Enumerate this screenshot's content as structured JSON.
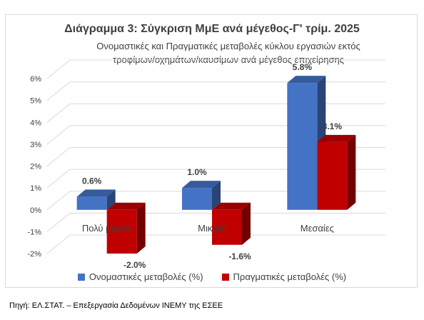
{
  "chart_data": {
    "type": "bar",
    "title": "Διάγραμμα 3: Σύγκριση ΜμΕ ανά μέγεθος-Γ' τρίμ. 2025",
    "subtitle_lines": [
      "Ονομαστικές και Πραγματικές μεταβολές κύκλου εργασιών εκτός",
      "τροφίμων/οχημάτων/καυσίμων ανά μέγεθος επιχείρησης"
    ],
    "categories": [
      "Πολύ μικρές",
      "Μικρές",
      "Μεσαίες"
    ],
    "series": [
      {
        "name": "Ονομαστικές μεταβολές (%)",
        "values": [
          0.6,
          1.0,
          5.8
        ],
        "labels": [
          "0.6%",
          "1.0%",
          "5.8%"
        ],
        "color": "#4472c4"
      },
      {
        "name": "Πραγματικές μεταβολές (%)",
        "values": [
          -2.0,
          -1.6,
          3.1
        ],
        "labels": [
          "-2.0%",
          "-1.6%",
          "3.1%"
        ],
        "color": "#c00000"
      }
    ],
    "ylim": [
      -2,
      6
    ],
    "yticks": [
      "-2%",
      "-1%",
      "0%",
      "1%",
      "2%",
      "3%",
      "4%",
      "5%",
      "6%"
    ],
    "grid": true,
    "legend_position": "bottom"
  },
  "source": "Πηγή: ΕΛ.ΣΤΑΤ. – Επεξεργασία Δεδομένων ΙΝΕΜΥ της ΕΣΕΕ"
}
